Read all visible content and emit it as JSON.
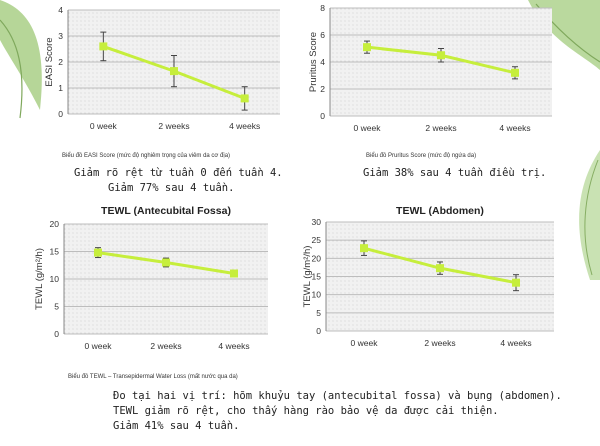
{
  "chart_data": [
    {
      "id": "easi",
      "type": "line",
      "title": "",
      "xlabel": "",
      "ylabel": "EASI Score",
      "categories": [
        "0 week",
        "2 weeks",
        "4 weeks"
      ],
      "values": [
        2.6,
        1.65,
        0.6
      ],
      "errors": [
        0.55,
        0.6,
        0.45
      ],
      "ylim": [
        0,
        4
      ],
      "yticks": [
        0,
        1,
        2,
        3,
        4
      ]
    },
    {
      "id": "pruritus",
      "type": "line",
      "title": "",
      "xlabel": "",
      "ylabel": "Pruritus Score",
      "categories": [
        "0 week",
        "2 weeks",
        "4 weeks"
      ],
      "values": [
        5.1,
        4.5,
        3.2
      ],
      "errors": [
        0.45,
        0.5,
        0.45
      ],
      "ylim": [
        0,
        8
      ],
      "yticks": [
        0,
        2,
        4,
        6,
        8
      ]
    },
    {
      "id": "tewl-antecubital",
      "type": "line",
      "title": "TEWL (Antecubital Fossa)",
      "xlabel": "",
      "ylabel": "TEWL (g/m²/h)",
      "categories": [
        "0 week",
        "2 weeks",
        "4 weeks"
      ],
      "values": [
        14.8,
        13.0,
        11.0
      ],
      "errors": [
        0.9,
        0.8,
        0.4
      ],
      "ylim": [
        0,
        20
      ],
      "yticks": [
        0,
        5,
        10,
        15,
        20
      ]
    },
    {
      "id": "tewl-abdomen",
      "type": "line",
      "title": "TEWL (Abdomen)",
      "xlabel": "",
      "ylabel": "TEWL (g/m²/h)",
      "categories": [
        "0 week",
        "2 weeks",
        "4 weeks"
      ],
      "values": [
        22.8,
        17.3,
        13.3
      ],
      "errors": [
        2.0,
        1.7,
        2.2
      ],
      "ylim": [
        0,
        30
      ],
      "yticks": [
        0,
        5,
        10,
        15,
        20,
        25,
        30
      ]
    }
  ],
  "captions": {
    "easi": "Biểu đồ EASI Score (mức độ nghiêm trọng của viêm da cơ địa)",
    "pruritus": "Biểu đồ Pruritus Score (mức độ ngứa da)",
    "tewl": "Biểu đồ TEWL – Transepidermal Water Loss (mất nước qua da)"
  },
  "notes": {
    "easi_line1": "Giảm rõ rệt từ tuần 0 đến tuần 4.",
    "easi_line2": "Giảm 77% sau 4 tuần.",
    "pruritus_line1": "Giảm 38% sau 4 tuần điều trị.",
    "tewl_line1": "Đo tại hai vị trí: hõm khuỷu tay (antecubital fossa) và bụng (abdomen).",
    "tewl_line2": "TEWL giảm rõ rệt, cho thấy hàng rào bảo vệ da được cải thiện.",
    "tewl_line3": "Giảm 41% sau 4 tuần."
  },
  "colors": {
    "series": "#c6ee3c",
    "errorbar": "#444444",
    "leaf": "#9cc47a"
  }
}
